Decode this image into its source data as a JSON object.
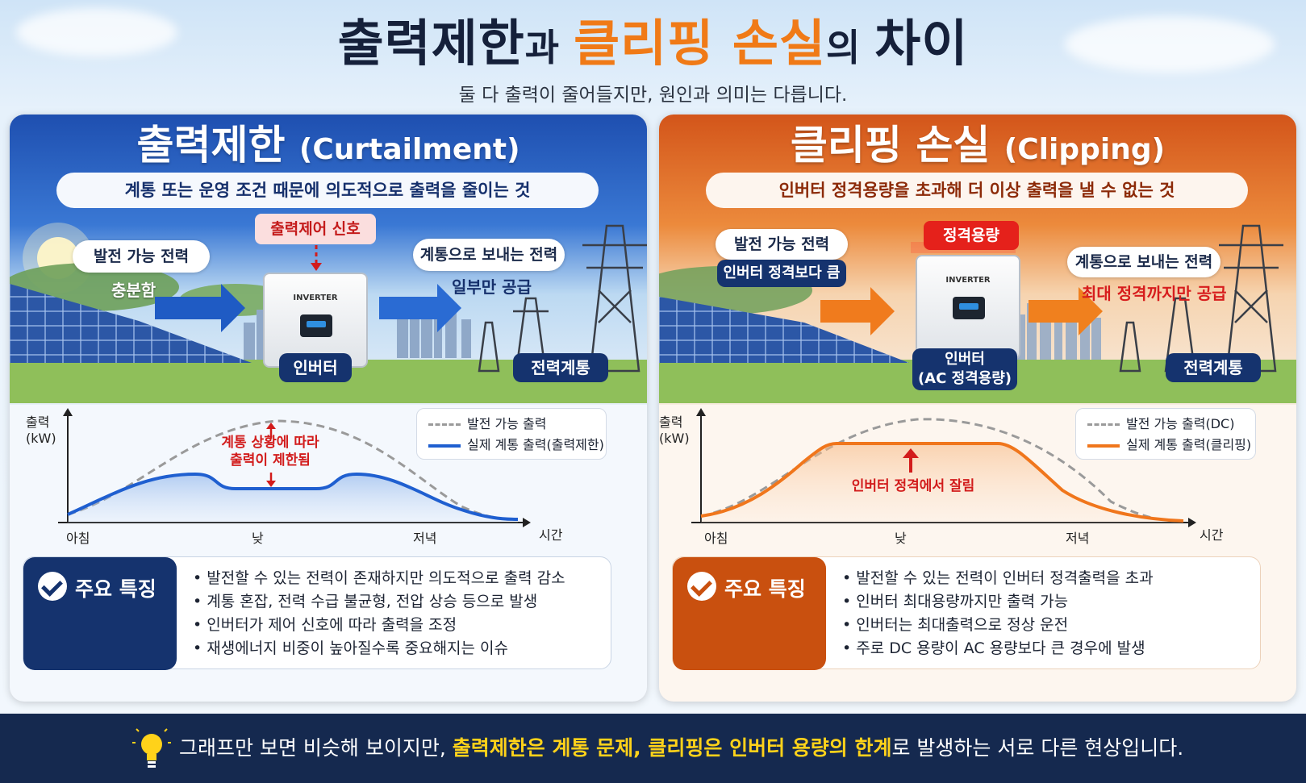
{
  "header": {
    "title_part1": "출력제한",
    "title_join1": "과 ",
    "title_part2": "클리핑 손실",
    "title_join2": "의 ",
    "title_part3": "차이",
    "subtitle": "둘 다 출력이 줄어들지만, 원인과 의미는 다릅니다."
  },
  "left": {
    "title_ko": "출력제한",
    "title_en": "(Curtailment)",
    "definition": "계통 또는 운영 조건 때문에 의도적으로 출력을 줄이는 것",
    "control_signal": "출력제어 신호",
    "gen_label": "발전 가능 전력",
    "gen_sub": "충분함",
    "inverter_brand": "INVERTER",
    "inverter_label": "인버터",
    "grid_send_label": "계통으로 보내는 전력",
    "grid_send_sub": "일부만 공급",
    "grid_label": "전력계통",
    "chart": {
      "ylabel": "출력\n(kW)",
      "xlabel": "시간",
      "annotation_line1": "계통 상황에 따라",
      "annotation_line2": "출력이 제한됨",
      "legend_dashed": "발전 가능 출력",
      "legend_solid": "실제 계통 출력(출력제한)"
    },
    "features_title": "주요 특징",
    "features": [
      "발전할 수 있는 전력이 존재하지만 의도적으로 출력 감소",
      "계통 혼잡, 전력 수급 불균형, 전압 상승 등으로 발생",
      "인버터가 제어 신호에 따라 출력을 조정",
      "재생에너지 비중이 높아질수록 중요해지는 이슈"
    ]
  },
  "right": {
    "title_ko": "클리핑 손실",
    "title_en": "(Clipping)",
    "definition": "인버터 정격용량을 초과해 더 이상 출력을 낼 수 없는 것",
    "rating_signal": "정격용량",
    "gen_label": "발전 가능 전력",
    "gen_sub": "인버터 정격보다 큼",
    "inverter_brand": "INVERTER",
    "inverter_label_line1": "인버터",
    "inverter_label_line2": "(AC 정격용량)",
    "grid_send_label": "계통으로 보내는 전력",
    "grid_send_sub": "최대 정격까지만 공급",
    "grid_label": "전력계통",
    "chart": {
      "ylabel": "출력\n(kW)",
      "xlabel": "시간",
      "annotation": "인버터 정격에서 잘림",
      "legend_dashed": "발전 가능 출력(DC)",
      "legend_solid": "실제 계통 출력(클리핑)"
    },
    "features_title": "주요 특징",
    "features": [
      "발전할 수 있는 전력이 인버터 정격출력을 초과",
      "인버터 최대용량까지만 출력 가능",
      "인버터는 최대출력으로 정상 운전",
      "주로 DC 용량이 AC 용량보다 큰 경우에 발생"
    ]
  },
  "chart_data": [
    {
      "type": "line",
      "x": [
        "아침",
        "낮",
        "저녁"
      ],
      "series": [
        {
          "name": "발전 가능 출력",
          "style": "dashed",
          "color": "#9a9a9a"
        },
        {
          "name": "실제 계통 출력(출력제한)",
          "style": "solid",
          "color": "#1f5fd0"
        }
      ]
    },
    {
      "type": "line",
      "x": [
        "아침",
        "낮",
        "저녁"
      ],
      "series": [
        {
          "name": "발전 가능 출력(DC)",
          "style": "dashed",
          "color": "#9a9a9a"
        },
        {
          "name": "실제 계통 출력(클리핑)",
          "style": "solid",
          "color": "#f0761c"
        }
      ]
    }
  ],
  "footer": {
    "text_before": "그래프만 보면 비슷해 보이지만, ",
    "text_highlight": "출력제한은 계통 문제, 클리핑은 인버터 용량의 한계",
    "text_after": "로 발생하는 서로 다른 현상입니다.",
    "icon": "lightbulb-icon"
  },
  "colors": {
    "blue_accent": "#1e4fb0",
    "orange_accent": "#f07a17",
    "navy": "#15294f",
    "highlight_yellow": "#ffd21a"
  }
}
